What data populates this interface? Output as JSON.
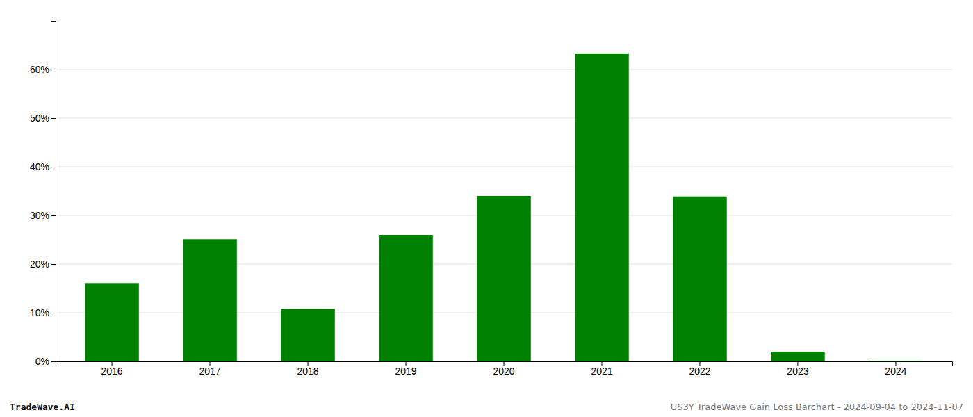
{
  "chart_data": {
    "type": "bar",
    "categories": [
      "2016",
      "2017",
      "2018",
      "2019",
      "2020",
      "2021",
      "2022",
      "2023",
      "2024"
    ],
    "values": [
      0.161,
      0.251,
      0.108,
      0.26,
      0.34,
      0.633,
      0.339,
      0.02,
      0.001
    ],
    "color": "#008000",
    "ylim": [
      0,
      0.7
    ],
    "yticks": [
      {
        "value": 0.0,
        "label": "0%"
      },
      {
        "value": 0.1,
        "label": "10%"
      },
      {
        "value": 0.2,
        "label": "20%"
      },
      {
        "value": 0.3,
        "label": "30%"
      },
      {
        "value": 0.4,
        "label": "40%"
      },
      {
        "value": 0.5,
        "label": "50%"
      },
      {
        "value": 0.6,
        "label": "60%"
      }
    ],
    "grid": true,
    "annotations": [
      "TradeWave.AI",
      "US3Y TradeWave Gain Loss Barchart - 2024-09-04 to 2024-11-07"
    ]
  }
}
